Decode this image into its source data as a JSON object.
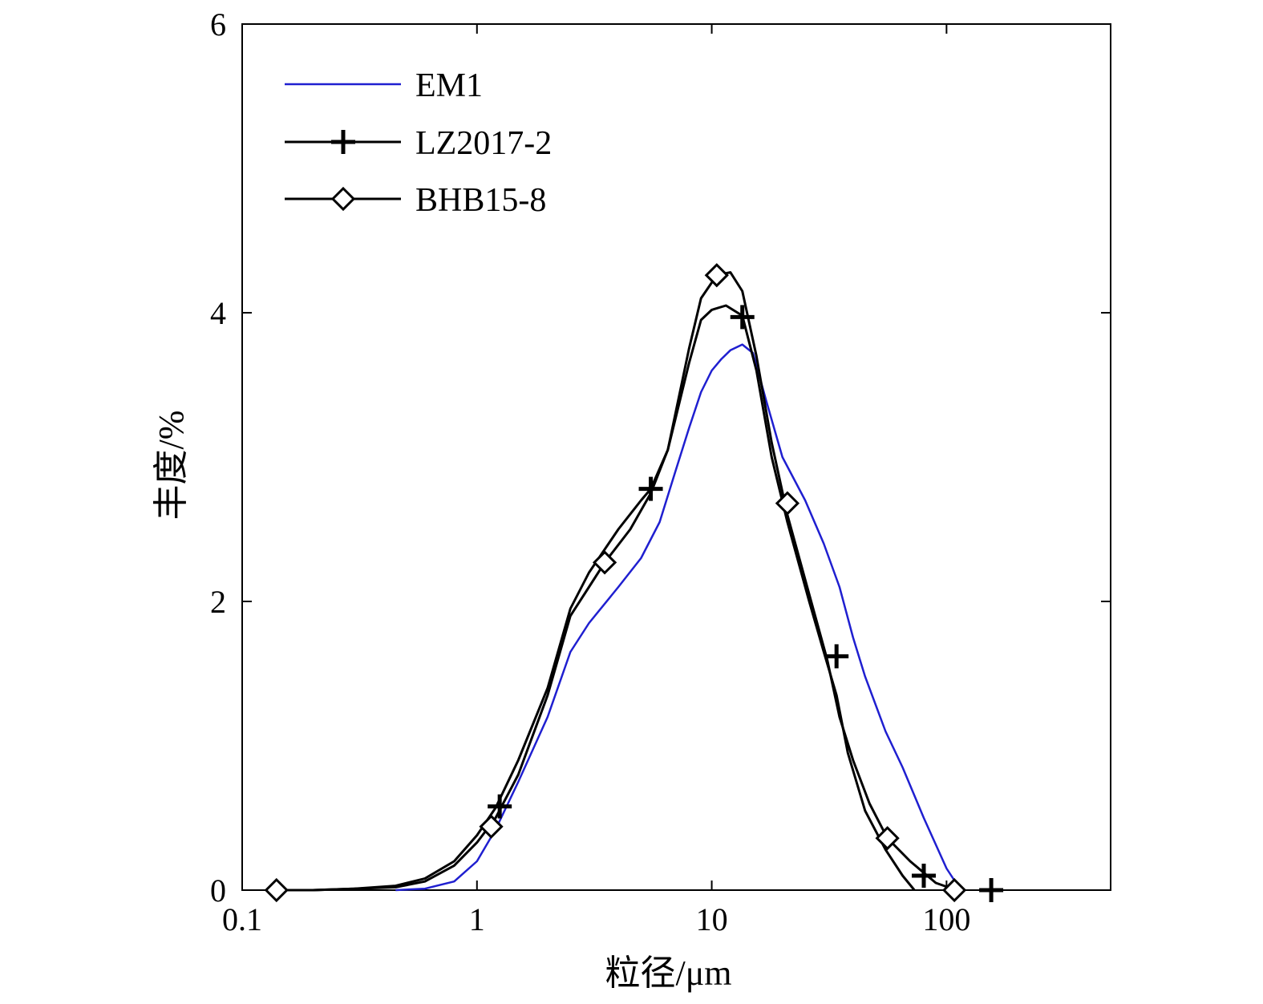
{
  "chart_data": {
    "type": "line",
    "title": "",
    "xlabel": "粒径/μm",
    "ylabel": "丰度/%",
    "xscale": "log",
    "xlim": [
      0.1,
      500
    ],
    "ylim": [
      0,
      6
    ],
    "xticks": [
      0.1,
      1,
      10,
      100
    ],
    "xtick_labels": [
      "0.1",
      "1",
      "10",
      "100"
    ],
    "yticks": [
      0,
      2,
      4,
      6
    ],
    "ytick_labels": [
      "0",
      "2",
      "4",
      "6"
    ],
    "grid": false,
    "legend_position": "top-left",
    "series": [
      {
        "name": "EM1",
        "color": "#1f1fd0",
        "marker": "none",
        "x": [
          0.45,
          0.6,
          0.8,
          1.0,
          1.2,
          1.5,
          2.0,
          2.5,
          3.0,
          4.0,
          5.0,
          6.0,
          7.0,
          8.0,
          9.0,
          10.0,
          11.0,
          12.0,
          13.5,
          15.0,
          17.0,
          20.0,
          25.0,
          30.0,
          35.0,
          40.0,
          45.0,
          55.0,
          65.0,
          80.0,
          100.0,
          115.0
        ],
        "y": [
          0.0,
          0.01,
          0.06,
          0.2,
          0.42,
          0.75,
          1.2,
          1.65,
          1.85,
          2.1,
          2.3,
          2.55,
          2.9,
          3.2,
          3.45,
          3.6,
          3.68,
          3.74,
          3.78,
          3.72,
          3.4,
          3.0,
          2.7,
          2.4,
          2.1,
          1.75,
          1.48,
          1.1,
          0.85,
          0.5,
          0.15,
          0.0
        ]
      },
      {
        "name": "LZ2017-2",
        "color": "#000000",
        "marker": "plus",
        "x": [
          0.14,
          0.2,
          0.3,
          0.45,
          0.6,
          0.8,
          1.0,
          1.2,
          1.5,
          2.0,
          2.5,
          3.0,
          4.0,
          5.0,
          5.5,
          6.5,
          8.0,
          9.0,
          10.0,
          11.5,
          13.5,
          15.5,
          18.0,
          21.0,
          26.0,
          30.0,
          34.0,
          38.0,
          45.0,
          55.0,
          65.0,
          73.0
        ],
        "y": [
          0.0,
          0.0,
          0.01,
          0.03,
          0.08,
          0.2,
          0.38,
          0.57,
          0.9,
          1.4,
          1.95,
          2.2,
          2.5,
          2.7,
          2.78,
          3.05,
          3.65,
          3.95,
          4.02,
          4.05,
          3.98,
          3.6,
          3.0,
          2.55,
          2.0,
          1.65,
          1.35,
          0.95,
          0.55,
          0.28,
          0.1,
          0.0
        ],
        "marker_x": [
          1.25,
          5.5,
          13.5,
          34.0,
          80.0,
          155.0
        ],
        "marker_y": [
          0.58,
          2.78,
          3.97,
          1.62,
          0.1,
          0.0
        ]
      },
      {
        "name": "BHB15-8",
        "color": "#000000",
        "marker": "diamond",
        "x": [
          0.14,
          0.2,
          0.3,
          0.45,
          0.6,
          0.8,
          1.0,
          1.2,
          1.5,
          2.0,
          2.5,
          3.0,
          3.5,
          4.5,
          5.5,
          6.5,
          8.0,
          9.0,
          10.5,
          12.0,
          13.5,
          15.5,
          18.0,
          21.0,
          26.0,
          31.0,
          35.0,
          40.0,
          47.0,
          56.0,
          70.0,
          90.0,
          110.0
        ],
        "y": [
          0.0,
          0.0,
          0.01,
          0.02,
          0.06,
          0.17,
          0.33,
          0.5,
          0.8,
          1.35,
          1.9,
          2.1,
          2.27,
          2.5,
          2.75,
          3.05,
          3.75,
          4.1,
          4.26,
          4.28,
          4.15,
          3.7,
          3.1,
          2.6,
          2.05,
          1.6,
          1.2,
          0.9,
          0.6,
          0.36,
          0.2,
          0.05,
          0.0
        ],
        "marker_x": [
          0.14,
          1.15,
          3.5,
          10.5,
          21.0,
          56.0,
          108.0
        ],
        "marker_y": [
          0.0,
          0.44,
          2.27,
          4.26,
          2.68,
          0.36,
          0.0
        ]
      }
    ]
  }
}
